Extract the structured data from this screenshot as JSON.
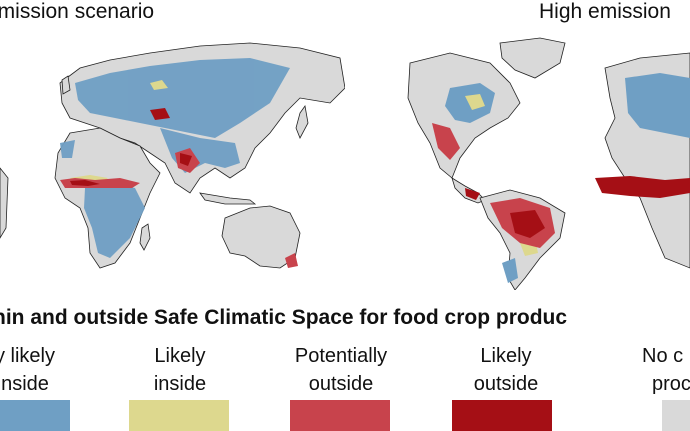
{
  "panels": {
    "left_title": "emission scenario",
    "right_title": "High emission"
  },
  "legend": {
    "heading": "hin and outside Safe Climatic Space for food crop produc",
    "categories": [
      {
        "line1": "y likely",
        "line2": "nside",
        "color": "#6f9fc4"
      },
      {
        "line1": "Likely",
        "line2": "inside",
        "color": "#ddd88e"
      },
      {
        "line1": "Potentially",
        "line2": "outside",
        "color": "#c8434c"
      },
      {
        "line1": "Likely",
        "line2": "outside",
        "color": "#a50f15"
      },
      {
        "line1": "No c",
        "line2": "proc",
        "color": "#d9d9d9"
      }
    ]
  },
  "colors": {
    "land_other": "#d9d9d9",
    "coast": "#222222"
  }
}
